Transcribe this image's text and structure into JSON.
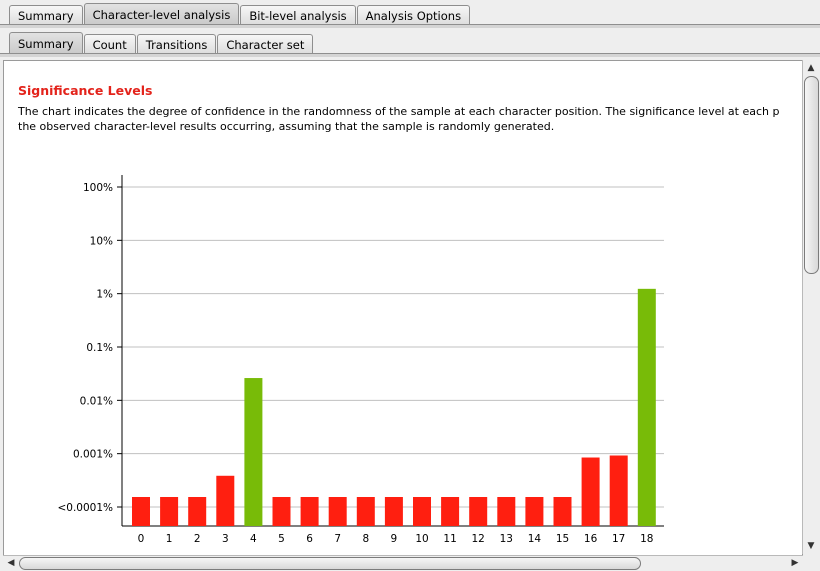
{
  "main_tabs": [
    {
      "label": "Summary",
      "active": false
    },
    {
      "label": "Character-level analysis",
      "active": true
    },
    {
      "label": "Bit-level analysis",
      "active": false
    },
    {
      "label": "Analysis Options",
      "active": false
    }
  ],
  "sub_tabs": [
    {
      "label": "Summary",
      "active": true
    },
    {
      "label": "Count",
      "active": false
    },
    {
      "label": "Transitions",
      "active": false
    },
    {
      "label": "Character set",
      "active": false
    }
  ],
  "section": {
    "title": "Significance Levels",
    "description_line1": "The chart indicates the degree of confidence in the randomness of the sample at each character position. The significance level at each p",
    "description_line2": "the observed character-level results occurring, assuming that the sample is randomly generated."
  },
  "colors": {
    "title": "#e3231b",
    "bar_fail": "#ff1f10",
    "bar_pass": "#78bb08",
    "grid": "#c0c0c0"
  },
  "chart_data": {
    "type": "bar",
    "yscale": "log",
    "y_tick_labels": [
      "<0.0001%",
      "0.001%",
      "0.01%",
      "0.1%",
      "1%",
      "10%",
      "100%"
    ],
    "y_tick_values": [
      0.0001,
      0.001,
      0.01,
      0.1,
      1,
      10,
      100
    ],
    "ylim": [
      0.0001,
      100
    ],
    "grid": true,
    "categories": [
      "0",
      "1",
      "2",
      "3",
      "4",
      "5",
      "6",
      "7",
      "8",
      "9",
      "10",
      "11",
      "12",
      "13",
      "14",
      "15",
      "16",
      "17",
      "18"
    ],
    "values": [
      0.0001,
      0.0001,
      0.0001,
      0.00025,
      0.017,
      0.0001,
      0.0001,
      0.0001,
      0.0001,
      0.0001,
      0.0001,
      0.0001,
      0.0001,
      0.0001,
      0.0001,
      0.0001,
      0.00055,
      0.0006,
      0.8
    ],
    "bar_status": [
      "fail",
      "fail",
      "fail",
      "fail",
      "pass",
      "fail",
      "fail",
      "fail",
      "fail",
      "fail",
      "fail",
      "fail",
      "fail",
      "fail",
      "fail",
      "fail",
      "fail",
      "fail",
      "pass"
    ]
  }
}
